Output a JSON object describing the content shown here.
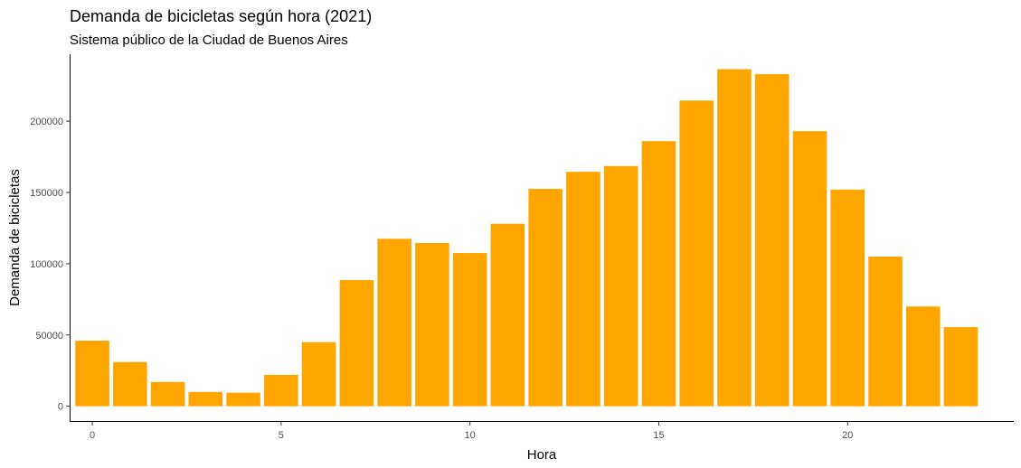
{
  "chart_data": {
    "type": "bar",
    "title": "Demanda de bicicletas según hora (2021)",
    "subtitle": "Sistema público de la Ciudad de Buenos Aires",
    "xlabel": "Hora",
    "ylabel": "Demanda de bicicletas",
    "x": [
      0,
      1,
      2,
      3,
      4,
      5,
      6,
      7,
      8,
      9,
      10,
      11,
      12,
      13,
      14,
      15,
      16,
      17,
      18,
      19,
      20,
      21,
      22,
      23
    ],
    "values": [
      46000,
      31000,
      17000,
      10000,
      9500,
      22000,
      45000,
      88500,
      117500,
      114500,
      107500,
      128000,
      152500,
      164500,
      168500,
      186000,
      214500,
      236500,
      233000,
      193000,
      152000,
      105000,
      70000,
      55500
    ],
    "xticks": [
      0,
      5,
      10,
      15,
      20
    ],
    "yticks": [
      0,
      50000,
      100000,
      150000,
      200000
    ],
    "xlim": [
      -0.6,
      24.4
    ],
    "ylim": [
      -11000,
      247000
    ],
    "bar_color": "#FFA500",
    "grid": false,
    "legend": "none"
  }
}
